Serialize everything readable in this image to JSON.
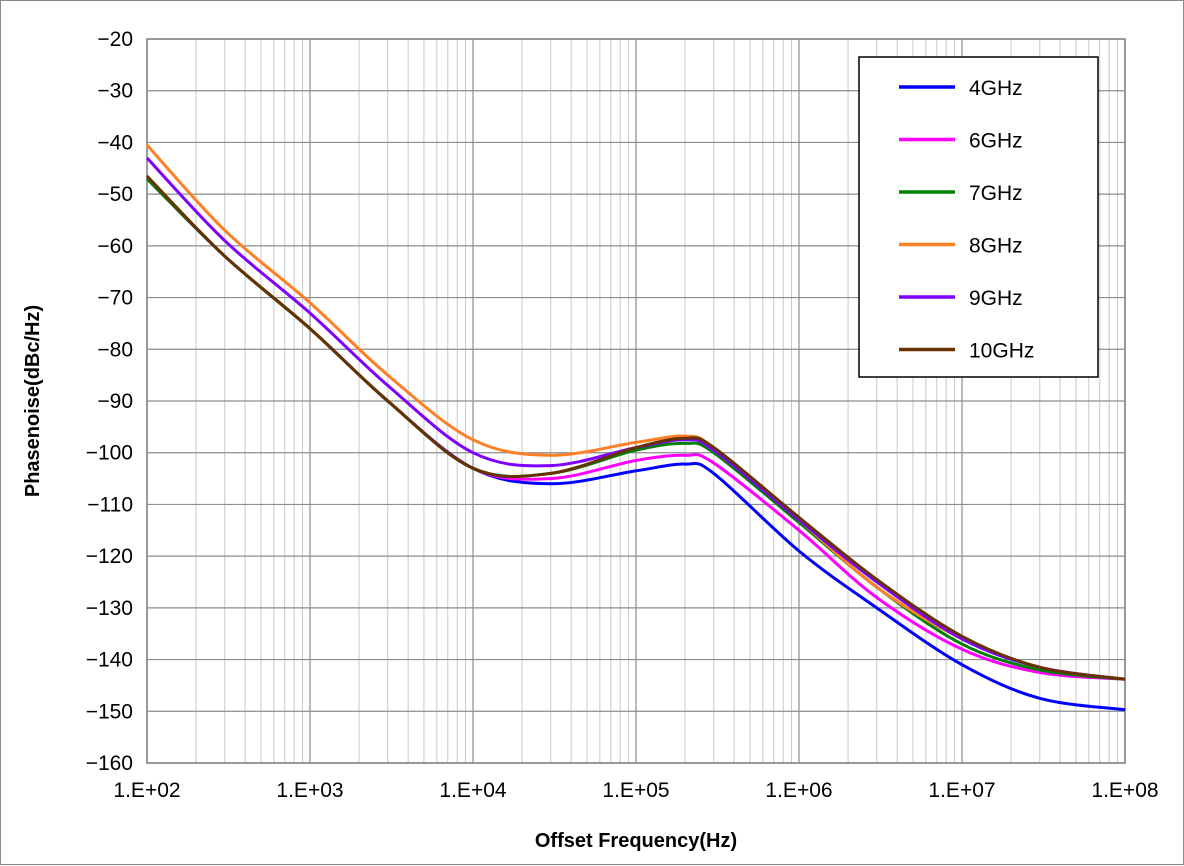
{
  "chart_data": {
    "type": "line",
    "title": "",
    "xlabel": "Offset Frequency(Hz)",
    "ylabel": "Phasenoise(dBc/Hz)",
    "x_scale": "log",
    "xlim": [
      100,
      100000000
    ],
    "ylim": [
      -160,
      -20
    ],
    "grid": true,
    "legend_position": "top-right",
    "x_ticks": [
      100,
      1000,
      10000,
      100000,
      1000000,
      10000000,
      100000000
    ],
    "x_tick_labels": [
      "1.E+02",
      "1.E+03",
      "1.E+04",
      "1.E+05",
      "1.E+06",
      "1.E+07",
      "1.E+08"
    ],
    "y_ticks": [
      -20,
      -30,
      -40,
      -50,
      -60,
      -70,
      -80,
      -90,
      -100,
      -110,
      -120,
      -130,
      -140,
      -150,
      -160
    ],
    "y_tick_labels": [
      "−20",
      "−30",
      "−40",
      "−50",
      "−60",
      "−70",
      "−80",
      "−90",
      "−100",
      "−110",
      "−120",
      "−130",
      "−140",
      "−150",
      "−160"
    ],
    "x": [
      100,
      300,
      1000,
      3000,
      10000,
      30000,
      100000,
      200000,
      300000,
      1000000,
      3000000,
      10000000,
      30000000,
      100000000
    ],
    "series": [
      {
        "name": "4GHz",
        "color": "#0000ff",
        "values": [
          -47,
          -62,
          -76,
          -90,
          -103,
          -106,
          -103.5,
          -102.2,
          -104,
          -119,
          -130,
          -141,
          -147.5,
          -149.7
        ]
      },
      {
        "name": "6GHz",
        "color": "#ff00ff",
        "values": [
          -47,
          -62,
          -76,
          -90,
          -103,
          -105,
          -101.5,
          -100.5,
          -102,
          -115,
          -128,
          -138,
          -142.5,
          -143.8
        ]
      },
      {
        "name": "7GHz",
        "color": "#008000",
        "values": [
          -47,
          -62,
          -76,
          -90,
          -103,
          -104,
          -99.5,
          -98.2,
          -100,
          -113.5,
          -126,
          -137,
          -142,
          -143.8
        ]
      },
      {
        "name": "8GHz",
        "color": "#ff7f27",
        "values": [
          -40.5,
          -57,
          -71,
          -85,
          -97.5,
          -100.5,
          -98,
          -96.8,
          -99,
          -113,
          -126,
          -136,
          -141.5,
          -143.8
        ]
      },
      {
        "name": "9GHz",
        "color": "#7f00ff",
        "values": [
          -43,
          -59,
          -73,
          -87,
          -100,
          -102.5,
          -99,
          -97.5,
          -99.5,
          -113,
          -125,
          -136,
          -141.5,
          -143.8
        ]
      },
      {
        "name": "10GHz",
        "color": "#663300",
        "values": [
          -46.5,
          -62,
          -76,
          -90,
          -103,
          -104,
          -99,
          -97.2,
          -99,
          -112.5,
          -124.5,
          -135.5,
          -141.5,
          -143.8
        ]
      }
    ]
  }
}
